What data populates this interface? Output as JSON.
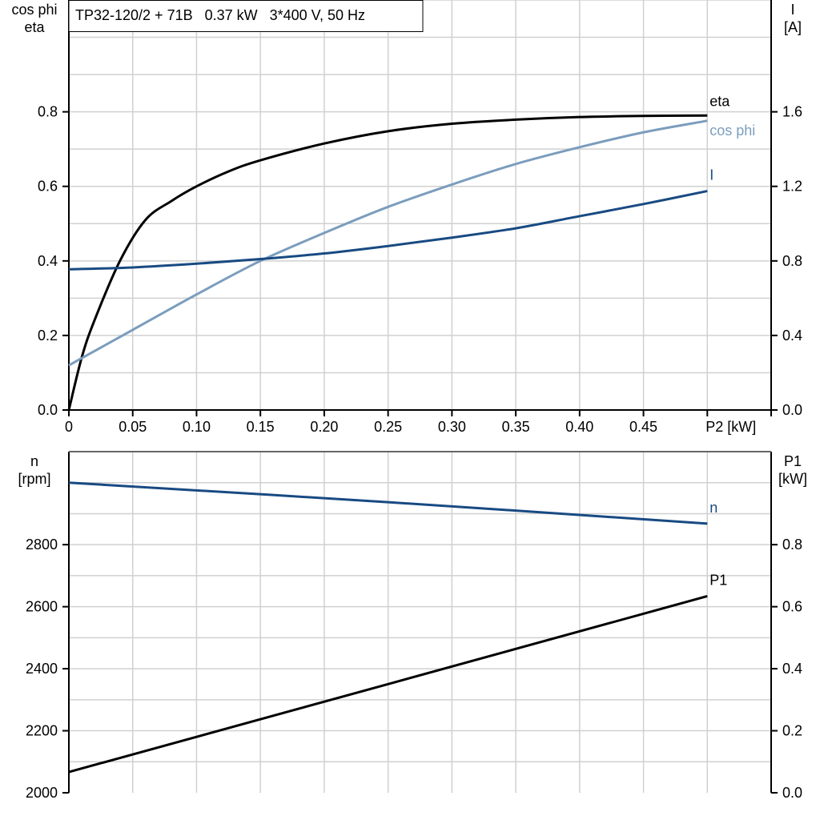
{
  "title": "TP32-120/2 + 71B   0.37 kW   3*400 V, 50 Hz",
  "colors": {
    "eta": "#000000",
    "cos_phi": "#7b9dbd",
    "I": "#184a82",
    "n": "#184a82",
    "P1": "#000000",
    "grid": "#d0d0d0"
  },
  "chart_data": [
    {
      "type": "line",
      "xlabel": "P2 [kW]",
      "xlim": [
        0,
        0.55
      ],
      "x_ticks": [
        "0",
        "0.05",
        "0.10",
        "0.15",
        "0.20",
        "0.25",
        "0.30",
        "0.35",
        "0.40",
        "0.45"
      ],
      "x_tick_values": [
        0,
        0.05,
        0.1,
        0.15,
        0.2,
        0.25,
        0.3,
        0.35,
        0.4,
        0.45
      ],
      "ylabel_left": [
        "cos phi",
        "eta"
      ],
      "ylim_left": [
        0,
        1.1
      ],
      "y_ticks_left": [
        "0.0",
        "0.2",
        "0.4",
        "0.6",
        "0.8"
      ],
      "y_tick_values_left": [
        0,
        0.2,
        0.4,
        0.6,
        0.8
      ],
      "ylabel_right": [
        "I",
        "[A]"
      ],
      "ylim_right": [
        0,
        2.2
      ],
      "y_ticks_right": [
        "0.0",
        "0.4",
        "0.8",
        "1.2",
        "1.6"
      ],
      "y_tick_values_right": [
        0,
        0.4,
        0.8,
        1.2,
        1.6
      ],
      "grid": true,
      "series": [
        {
          "name": "eta",
          "axis": "left",
          "color": "#000000",
          "x": [
            0,
            0.01,
            0.02,
            0.04,
            0.06,
            0.08,
            0.1,
            0.125,
            0.15,
            0.2,
            0.25,
            0.3,
            0.35,
            0.4,
            0.45,
            0.5
          ],
          "y": [
            0,
            0.14,
            0.24,
            0.4,
            0.51,
            0.56,
            0.6,
            0.64,
            0.67,
            0.715,
            0.748,
            0.768,
            0.779,
            0.786,
            0.789,
            0.79
          ]
        },
        {
          "name": "cos phi",
          "axis": "left",
          "color": "#7b9dbd",
          "x": [
            0,
            0.05,
            0.1,
            0.15,
            0.2,
            0.25,
            0.3,
            0.35,
            0.4,
            0.45,
            0.5
          ],
          "y": [
            0.12,
            0.215,
            0.31,
            0.4,
            0.475,
            0.545,
            0.605,
            0.66,
            0.705,
            0.745,
            0.776
          ]
        },
        {
          "name": "I",
          "axis": "right",
          "color": "#184a82",
          "x": [
            0,
            0.05,
            0.1,
            0.15,
            0.2,
            0.25,
            0.3,
            0.35,
            0.4,
            0.45,
            0.5
          ],
          "y": [
            0.755,
            0.765,
            0.785,
            0.81,
            0.84,
            0.88,
            0.925,
            0.975,
            1.04,
            1.105,
            1.175
          ]
        }
      ]
    },
    {
      "type": "line",
      "xlim": [
        0,
        0.55
      ],
      "ylabel_left": [
        "n",
        "[rpm]"
      ],
      "ylim_left": [
        2000,
        3100
      ],
      "y_ticks_left": [
        "2000",
        "2200",
        "2400",
        "2600",
        "2800"
      ],
      "y_tick_values_left": [
        2000,
        2200,
        2400,
        2600,
        2800
      ],
      "ylabel_right": [
        "P1",
        "[kW]"
      ],
      "ylim_right": [
        0,
        1.1
      ],
      "y_ticks_right": [
        "0.0",
        "0.2",
        "0.4",
        "0.6",
        "0.8"
      ],
      "y_tick_values_right": [
        0,
        0.2,
        0.4,
        0.6,
        0.8
      ],
      "grid": true,
      "series": [
        {
          "name": "n",
          "axis": "left",
          "color": "#184a82",
          "x": [
            0,
            0.25,
            0.5
          ],
          "y": [
            3000,
            2937,
            2868
          ]
        },
        {
          "name": "P1",
          "axis": "right",
          "color": "#000000",
          "x": [
            0,
            0.5
          ],
          "y": [
            0.067,
            0.634
          ]
        }
      ]
    }
  ]
}
